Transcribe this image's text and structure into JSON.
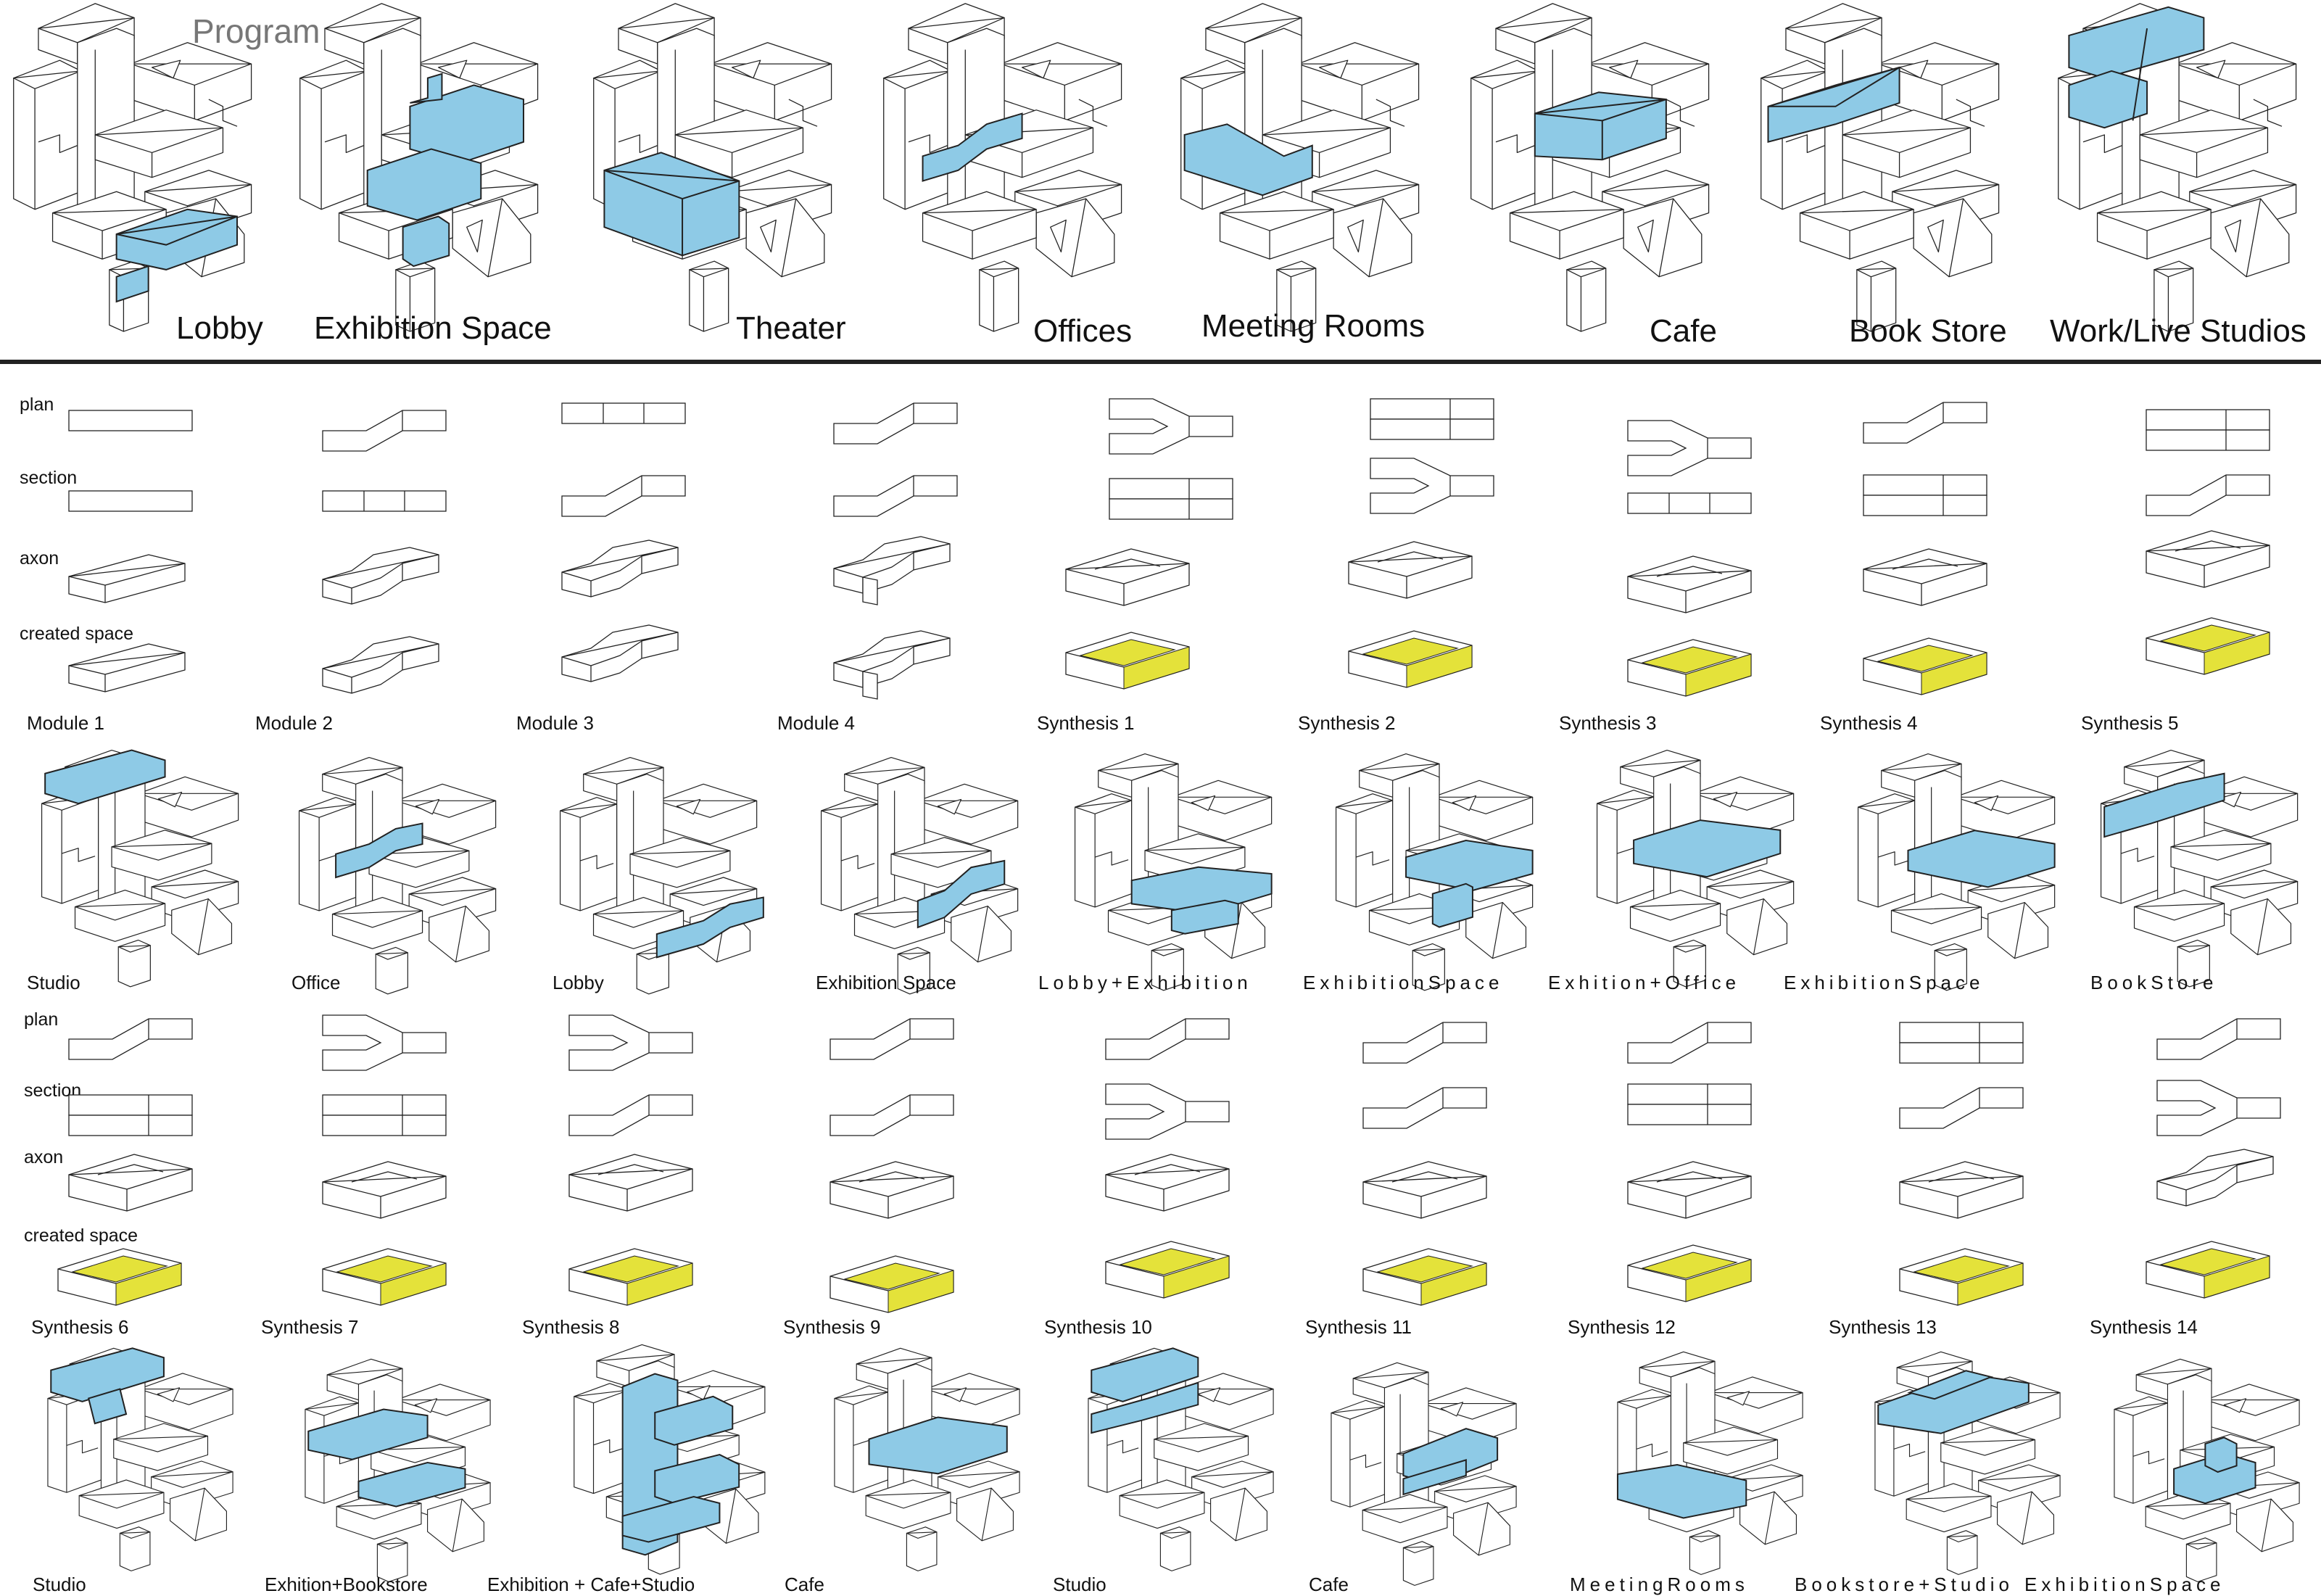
{
  "program": {
    "title": "Program",
    "labels": [
      "Lobby",
      "Exhibition Space",
      "Theater",
      "Offices",
      "Meeting Rooms",
      "Cafe",
      "Book Store",
      "Work/Live Studios"
    ]
  },
  "row_labels": {
    "plan": "plan",
    "section": "section",
    "axon": "axon",
    "created_space": "created  space"
  },
  "set1": {
    "labels": [
      "Module 1",
      "Module 2",
      "Module 3",
      "Module 4",
      "Synthesis  1",
      "Synthesis  2",
      "Synthesis  3",
      "Synthesis  4",
      "Synthesis  5"
    ]
  },
  "set2": {
    "labels": [
      "Synthesis  6",
      "Synthesis  7",
      "Synthesis  8",
      "Synthesis  9",
      "Synthesis  10",
      "Synthesis  11",
      "Synthesis  12",
      "Synthesis  13",
      "Synthesis  14"
    ]
  },
  "usage1": {
    "labels": [
      "Studio",
      "Office",
      "Lobby",
      "Exhibition  Space",
      "Lobby+Exhibition",
      "ExhibitionSpace",
      "Exhition+Office",
      "ExhibitionSpace",
      "BookStore"
    ]
  },
  "usage2": {
    "labels": [
      "Studio",
      "Exhition+Bookstore",
      "Exhibition  + Cafe+Studio",
      "Cafe",
      "Studio",
      "Cafe",
      "MeetingRooms",
      "Bookstore+Studio",
      "ExhibitionSpace"
    ]
  },
  "colors": {
    "program_fill": "#8ecae6",
    "created_space_fill": "#e4e23a",
    "line": "#222222",
    "divider": "#222222",
    "title_gray": "#777777"
  }
}
